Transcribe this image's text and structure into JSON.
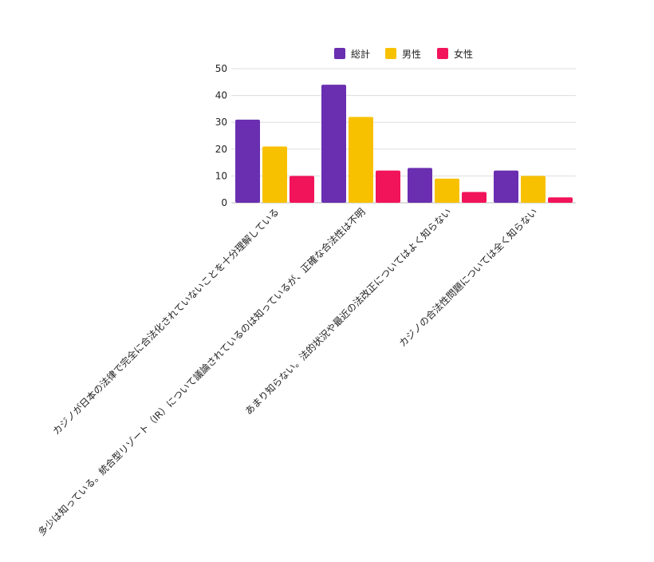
{
  "chart_data": {
    "type": "bar",
    "title": "",
    "xlabel": "",
    "ylabel": "",
    "ylim": [
      0,
      50
    ],
    "yticks": [
      0,
      10,
      20,
      30,
      40,
      50
    ],
    "grid": true,
    "legend_position": "top",
    "categories": [
      "カジノが日本の法律で完全に合法化されていないことを十分理解している",
      "多少は知っている。統合型リゾート（IR）について議論されているのは知っているが、正確な合法性は不明",
      "あまり知らない。法的状況や最近の法改正についてはよく知らない",
      "カジノの合法性問題については全く知らない"
    ],
    "series": [
      {
        "name": "総計",
        "color": "#6a2fb0",
        "values": [
          31,
          44,
          13,
          12
        ]
      },
      {
        "name": "男性",
        "color": "#f7c100",
        "values": [
          21,
          32,
          9,
          10
        ]
      },
      {
        "name": "女性",
        "color": "#f2145a",
        "values": [
          10,
          12,
          4,
          2
        ]
      }
    ]
  }
}
